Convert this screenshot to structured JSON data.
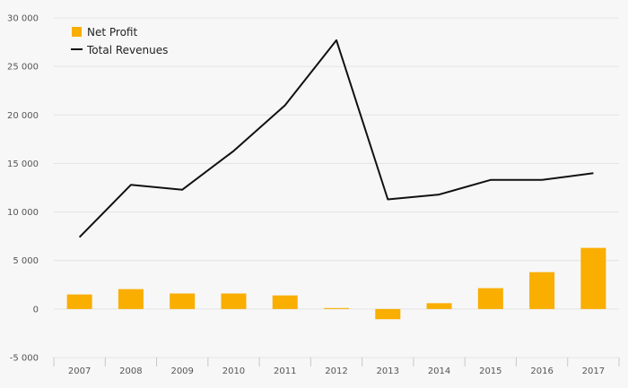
{
  "chart_data": {
    "type": "bar",
    "title": "",
    "xlabel": "",
    "ylabel": "",
    "categories": [
      "2007",
      "2008",
      "2009",
      "2010",
      "2011",
      "2012",
      "2013",
      "2014",
      "2015",
      "2016",
      "2017"
    ],
    "series": [
      {
        "name": "Net Profit",
        "type": "bar",
        "color": "#f9ae00",
        "values": [
          1500,
          2050,
          1600,
          1600,
          1400,
          100,
          -1050,
          600,
          2150,
          3800,
          6300
        ]
      },
      {
        "name": "Total Revenues",
        "type": "line",
        "color": "#111111",
        "values": [
          7400,
          12800,
          12300,
          16300,
          21000,
          27700,
          11300,
          11800,
          13300,
          13300,
          14000
        ]
      }
    ],
    "ylim": [
      -5000,
      30000
    ],
    "yticks": [
      -5000,
      0,
      5000,
      10000,
      15000,
      20000,
      25000,
      30000
    ],
    "ytick_labels": [
      "-5 000",
      "0",
      "5 000",
      "10 000",
      "15 000",
      "20 000",
      "25 000",
      "30 000"
    ],
    "grid": true,
    "legend": {
      "position": "top-left"
    }
  }
}
